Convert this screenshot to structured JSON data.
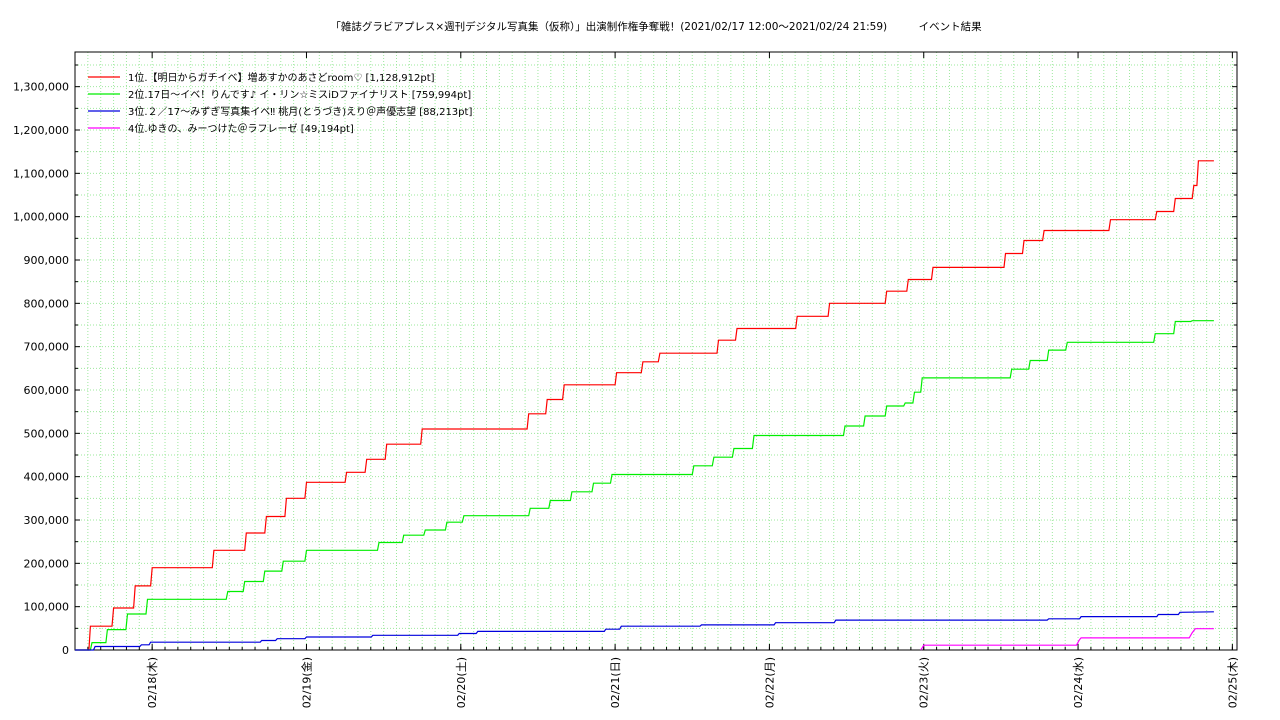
{
  "chart_data": {
    "type": "line",
    "title": "「雑誌グラビアプレス×週刊デジタル写真集（仮称）」出演制作権争奪戦！(2021/02/17 12:00〜2021/02/24 21:59)　　　イベント結果",
    "xlabel": "",
    "ylabel": "",
    "ylim": [
      0,
      1380000
    ],
    "xlim": [
      0,
      7.53
    ],
    "grid": true,
    "legend_position": "top-left",
    "y_ticks": [
      {
        "value": 0,
        "label": "0"
      },
      {
        "value": 100000,
        "label": "100,000"
      },
      {
        "value": 200000,
        "label": "200,000"
      },
      {
        "value": 300000,
        "label": "300,000"
      },
      {
        "value": 400000,
        "label": "400,000"
      },
      {
        "value": 500000,
        "label": "500,000"
      },
      {
        "value": 600000,
        "label": "600,000"
      },
      {
        "value": 700000,
        "label": "700,000"
      },
      {
        "value": 800000,
        "label": "800,000"
      },
      {
        "value": 900000,
        "label": "900,000"
      },
      {
        "value": 1000000,
        "label": "1,000,000"
      },
      {
        "value": 1100000,
        "label": "1,100,000"
      },
      {
        "value": 1200000,
        "label": "1,200,000"
      },
      {
        "value": 1300000,
        "label": "1,300,000"
      }
    ],
    "x_ticks": [
      {
        "value": 0.5,
        "label": "02/18(木)"
      },
      {
        "value": 1.5,
        "label": "02/19(金)"
      },
      {
        "value": 2.5,
        "label": "02/20(土)"
      },
      {
        "value": 3.5,
        "label": "02/21(日)"
      },
      {
        "value": 4.5,
        "label": "02/22(月)"
      },
      {
        "value": 5.5,
        "label": "02/23(火)"
      },
      {
        "value": 6.5,
        "label": "02/24(水)"
      },
      {
        "value": 7.5,
        "label": "02/25(木)"
      }
    ],
    "series": [
      {
        "name": "1位.【明日からガチイベ】増あすかのあさどroom♡ [1,128,912pt]",
        "color": "#ff0000",
        "x": [
          0.0,
          0.09,
          0.1,
          0.24,
          0.25,
          0.38,
          0.39,
          0.49,
          0.5,
          0.89,
          0.9,
          1.1,
          1.11,
          1.23,
          1.24,
          1.36,
          1.37,
          1.49,
          1.5,
          1.75,
          1.76,
          1.88,
          1.89,
          2.01,
          2.02,
          2.24,
          2.25,
          2.93,
          2.94,
          3.05,
          3.06,
          3.16,
          3.17,
          3.5,
          3.51,
          3.67,
          3.68,
          3.78,
          3.79,
          4.16,
          4.17,
          4.28,
          4.29,
          4.67,
          4.68,
          4.88,
          4.89,
          5.25,
          5.26,
          5.39,
          5.4,
          5.55,
          5.56,
          6.02,
          6.03,
          6.14,
          6.15,
          6.27,
          6.28,
          6.7,
          6.71,
          7.0,
          7.01,
          7.12,
          7.13,
          7.24,
          7.25,
          7.27,
          7.28,
          7.38
        ],
        "values": [
          0,
          0,
          55000,
          55000,
          97000,
          97000,
          148000,
          148000,
          190000,
          190000,
          230000,
          230000,
          270000,
          270000,
          308000,
          308000,
          350000,
          350000,
          387000,
          387000,
          410000,
          410000,
          440000,
          440000,
          475000,
          475000,
          510000,
          510000,
          545000,
          545000,
          578000,
          578000,
          612000,
          612000,
          640000,
          640000,
          665000,
          665000,
          685000,
          685000,
          715000,
          715000,
          742000,
          742000,
          770000,
          770000,
          800000,
          800000,
          828000,
          828000,
          855000,
          855000,
          883000,
          883000,
          915000,
          915000,
          945000,
          945000,
          968000,
          968000,
          993000,
          993000,
          1012000,
          1012000,
          1042000,
          1042000,
          1072000,
          1072000,
          1128912,
          1128912
        ]
      },
      {
        "name": "2位.17日〜イベ！りんです♪ イ・リン☆ミスiDファイナリスト [759,994pt]",
        "color": "#00ee00",
        "x": [
          0.0,
          0.1,
          0.11,
          0.2,
          0.21,
          0.33,
          0.34,
          0.46,
          0.47,
          0.98,
          0.99,
          1.09,
          1.1,
          1.22,
          1.23,
          1.34,
          1.35,
          1.49,
          1.5,
          1.96,
          1.97,
          2.12,
          2.13,
          2.26,
          2.27,
          2.4,
          2.41,
          2.51,
          2.52,
          2.94,
          2.95,
          3.07,
          3.08,
          3.21,
          3.22,
          3.35,
          3.36,
          3.47,
          3.48,
          4.0,
          4.01,
          4.13,
          4.14,
          4.26,
          4.27,
          4.39,
          4.4,
          4.98,
          4.99,
          5.11,
          5.12,
          5.25,
          5.26,
          5.37,
          5.38,
          5.43,
          5.44,
          5.48,
          5.49,
          6.06,
          6.07,
          6.18,
          6.19,
          6.3,
          6.31,
          6.42,
          6.43,
          6.99,
          7.0,
          7.12,
          7.13,
          7.23,
          7.24,
          7.38
        ],
        "values": [
          0,
          0,
          17000,
          17000,
          47000,
          47000,
          83000,
          83000,
          117000,
          117000,
          135000,
          135000,
          158000,
          158000,
          182000,
          182000,
          205000,
          205000,
          230000,
          230000,
          248000,
          248000,
          265000,
          265000,
          277000,
          277000,
          295000,
          295000,
          310000,
          310000,
          327000,
          327000,
          345000,
          345000,
          365000,
          365000,
          385000,
          385000,
          405000,
          405000,
          425000,
          425000,
          445000,
          445000,
          465000,
          465000,
          495000,
          495000,
          517000,
          517000,
          540000,
          540000,
          563000,
          563000,
          570000,
          570000,
          595000,
          595000,
          628000,
          628000,
          648000,
          648000,
          668000,
          668000,
          692000,
          692000,
          710000,
          710000,
          730000,
          730000,
          758000,
          758000,
          759994,
          759994
        ]
      },
      {
        "name": "3位.２／17〜みずぎ写真集イベ‼︎ 桃月(とうづき)えり＠声優志望 [88,213pt]",
        "color": "#0000dd",
        "x": [
          0.0,
          0.12,
          0.13,
          0.42,
          0.43,
          0.48,
          0.49,
          1.2,
          1.21,
          1.3,
          1.31,
          1.49,
          1.5,
          1.92,
          1.93,
          2.48,
          2.49,
          2.6,
          2.61,
          3.43,
          3.44,
          3.53,
          3.54,
          4.05,
          4.06,
          4.53,
          4.54,
          4.92,
          4.93,
          6.3,
          6.31,
          6.51,
          6.52,
          7.01,
          7.02,
          7.15,
          7.16,
          7.38
        ],
        "values": [
          0,
          0,
          8000,
          8000,
          12000,
          12000,
          18000,
          18000,
          22000,
          22000,
          26000,
          26000,
          30000,
          30000,
          34000,
          34000,
          38000,
          38000,
          43000,
          43000,
          48000,
          48000,
          55000,
          55000,
          58000,
          58000,
          63000,
          63000,
          69000,
          69000,
          72000,
          72000,
          77000,
          77000,
          82000,
          82000,
          87000,
          88213
        ]
      },
      {
        "name": "4位.ゆきの、みーつけた＠ラフレーゼ [49,194pt]",
        "color": "#ff00ff",
        "x": [
          5.48,
          5.49,
          5.5,
          6.49,
          6.5,
          6.51,
          6.52,
          7.22,
          7.24,
          7.26,
          7.38
        ],
        "values": [
          0,
          5000,
          11000,
          11000,
          18000,
          24000,
          28000,
          28000,
          40000,
          49194,
          49194
        ]
      }
    ]
  }
}
